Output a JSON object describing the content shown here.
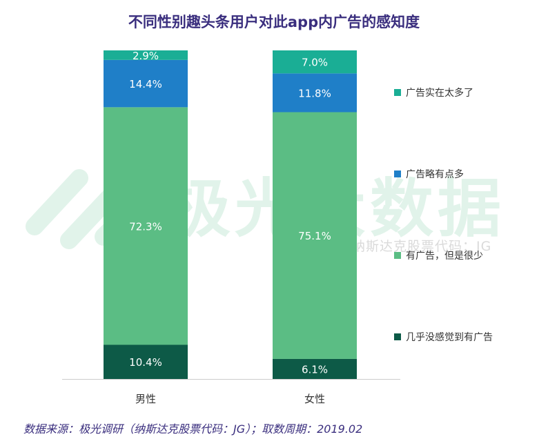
{
  "header": {
    "title": "不同性别趣头条用户对此app内广告的感知度"
  },
  "watermark": {
    "brand": "极光大数据",
    "subtitle": "纳斯达克股票代码：JG"
  },
  "footer": {
    "source": "数据来源：极光调研（纳斯达克股票代码：JG）；取数周期：2019.02"
  },
  "chart_data": {
    "type": "bar",
    "stacked": true,
    "percent_axis": true,
    "title": "不同性别趣头条用户对此app内广告的感知度",
    "categories": [
      "男性",
      "女性"
    ],
    "series": [
      {
        "name": "几乎没感觉到有广告",
        "color": "#0d5a47",
        "values": [
          10.4,
          6.1
        ],
        "labels": [
          "10.4%",
          "6.1%"
        ]
      },
      {
        "name": "有广告，但是很少",
        "color": "#5bbd84",
        "values": [
          72.3,
          75.1
        ],
        "labels": [
          "72.3%",
          "75.1%"
        ]
      },
      {
        "name": "广告略有点多",
        "color": "#1f7fc8",
        "values": [
          14.4,
          11.8
        ],
        "labels": [
          "14.4%",
          "11.8%"
        ]
      },
      {
        "name": "广告实在太多了",
        "color": "#1aae95",
        "values": [
          2.9,
          7.0
        ],
        "labels": [
          "2.9%",
          "7.0%"
        ]
      }
    ],
    "legend_position": "right",
    "grid": false,
    "ylim": [
      0,
      100
    ]
  }
}
